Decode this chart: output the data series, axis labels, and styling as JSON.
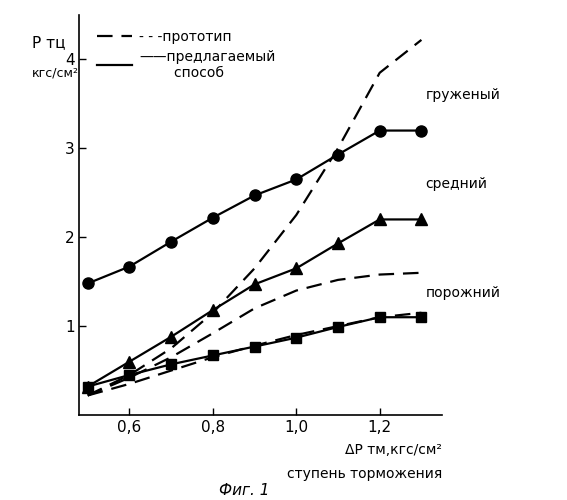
{
  "background_color": "#ffffff",
  "line_color": "#000000",
  "xlim": [
    0.48,
    1.35
  ],
  "ylim": [
    0.0,
    4.5
  ],
  "x_ticks": [
    0.6,
    0.8,
    1.0,
    1.2
  ],
  "yticks": [
    1,
    2,
    3,
    4
  ],
  "x_pts": [
    0.5,
    0.6,
    0.7,
    0.8,
    0.9,
    1.0,
    1.1,
    1.2,
    1.3
  ],
  "y_solid_circle": [
    1.48,
    1.67,
    1.95,
    2.22,
    2.47,
    2.65,
    2.93,
    3.2,
    3.2
  ],
  "y_dashed_loaded": [
    0.22,
    0.45,
    0.75,
    1.15,
    1.65,
    2.25,
    3.0,
    3.85,
    4.22
  ],
  "y_solid_triangle": [
    0.32,
    0.6,
    0.88,
    1.18,
    1.47,
    1.65,
    1.93,
    2.2,
    2.2
  ],
  "y_dashed_medium": [
    0.22,
    0.42,
    0.65,
    0.92,
    1.2,
    1.4,
    1.52,
    1.58,
    1.6
  ],
  "y_solid_square": [
    0.32,
    0.45,
    0.57,
    0.67,
    0.77,
    0.87,
    0.99,
    1.1,
    1.1
  ],
  "y_dashed_empty": [
    0.22,
    0.35,
    0.5,
    0.65,
    0.78,
    0.9,
    1.0,
    1.1,
    1.15
  ],
  "label_loaded": "груженый",
  "label_medium": "средний",
  "label_empty": "порожний",
  "legend_dash_label": "- - -прототип",
  "legend_solid_label": "——предлагаемый\n        способ",
  "ylabel_top": "P тц",
  "ylabel_bottom": "кгс/см²",
  "xlabel_main": "ΔP тм,кгс/см²",
  "xlabel_sub": "ступень торможения",
  "fig_label": "Фиг. 1"
}
